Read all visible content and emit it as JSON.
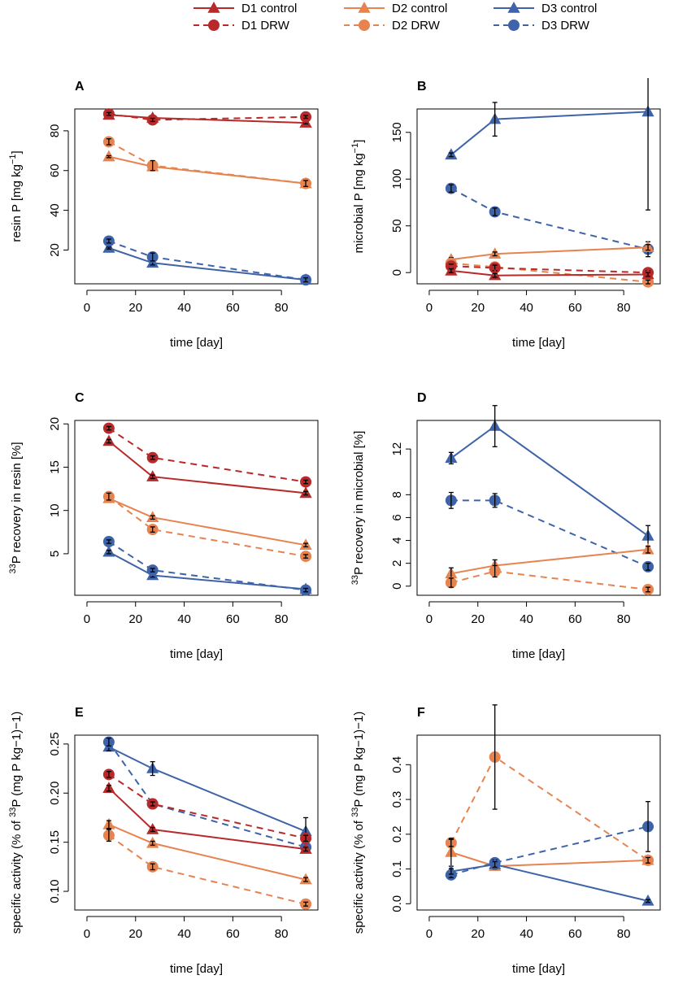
{
  "colors": {
    "D1": "#b82a2a",
    "D2": "#e6834f",
    "D3": "#3e63a8",
    "axis": "#000000"
  },
  "legend": {
    "items": [
      {
        "label": "D1 control",
        "site": "D1",
        "dashed": false,
        "marker": "triangle"
      },
      {
        "label": "D2 control",
        "site": "D2",
        "dashed": false,
        "marker": "triangle"
      },
      {
        "label": "D3 control",
        "site": "D3",
        "dashed": false,
        "marker": "triangle"
      },
      {
        "label": "D1 DRW",
        "site": "D1",
        "dashed": true,
        "marker": "circle"
      },
      {
        "label": "D2 DRW",
        "site": "D2",
        "dashed": true,
        "marker": "circle"
      },
      {
        "label": "D3 DRW",
        "site": "D3",
        "dashed": true,
        "marker": "circle"
      }
    ]
  },
  "chart_data": [
    {
      "type": "line",
      "panel": "A",
      "xlabel": "time [day]",
      "ylabel_pre": "resin P [mg kg",
      "ylabel_sup": "−1",
      "ylabel_post": "]",
      "xlim": [
        -5,
        95
      ],
      "ylim": [
        3,
        91
      ],
      "xticks": [
        "0",
        "20",
        "40",
        "60",
        "80"
      ],
      "xtick_values": [
        0,
        20,
        40,
        60,
        80
      ],
      "yticks": [
        "20",
        "40",
        "60",
        "80"
      ],
      "ytick_values": [
        20,
        40,
        60,
        80
      ],
      "x": [
        9,
        27,
        90
      ],
      "series": [
        {
          "name": "D1 control",
          "site": "D1",
          "dashed": false,
          "marker": "triangle",
          "values": [
            88,
            86.5,
            84
          ],
          "err": [
            0.5,
            0.5,
            0.5
          ]
        },
        {
          "name": "D1 DRW",
          "site": "D1",
          "dashed": true,
          "marker": "circle",
          "values": [
            88.5,
            85.5,
            87
          ],
          "err": [
            0.7,
            0.8,
            0.7
          ]
        },
        {
          "name": "D2 control",
          "site": "D2",
          "dashed": false,
          "marker": "triangle",
          "values": [
            67,
            62,
            53.5
          ],
          "err": [
            0.5,
            1.5,
            1
          ]
        },
        {
          "name": "D2 DRW",
          "site": "D2",
          "dashed": true,
          "marker": "circle",
          "values": [
            74.5,
            62.5,
            53.5
          ],
          "err": [
            1.5,
            2.5,
            1.5
          ]
        },
        {
          "name": "D3 control",
          "site": "D3",
          "dashed": false,
          "marker": "triangle",
          "values": [
            21,
            13.5,
            5
          ],
          "err": [
            0.5,
            1,
            0.5
          ]
        },
        {
          "name": "D3 DRW",
          "site": "D3",
          "dashed": true,
          "marker": "circle",
          "values": [
            24.5,
            16.5,
            5
          ],
          "err": [
            1,
            2,
            1
          ]
        }
      ]
    },
    {
      "type": "line",
      "panel": "B",
      "xlabel": "time [day]",
      "ylabel_pre": "microbial P [mg kg",
      "ylabel_sup": "−1",
      "ylabel_post": "]",
      "xlim": [
        -5,
        95
      ],
      "ylim": [
        -12,
        175
      ],
      "xticks": [
        "0",
        "20",
        "40",
        "60",
        "80"
      ],
      "xtick_values": [
        0,
        20,
        40,
        60,
        80
      ],
      "yticks": [
        "0",
        "50",
        "100",
        "150"
      ],
      "ytick_values": [
        0,
        50,
        100,
        150
      ],
      "x": [
        9,
        27,
        90
      ],
      "series": [
        {
          "name": "D3 control",
          "site": "D3",
          "dashed": false,
          "marker": "triangle",
          "values": [
            126,
            164,
            172
          ],
          "err": [
            2,
            18,
            105
          ]
        },
        {
          "name": "D3 DRW",
          "site": "D3",
          "dashed": true,
          "marker": "circle",
          "values": [
            90,
            65,
            25
          ],
          "err": [
            4,
            4,
            8
          ]
        },
        {
          "name": "D2 control",
          "site": "D2",
          "dashed": false,
          "marker": "triangle",
          "values": [
            14,
            20,
            27
          ],
          "err": [
            2,
            2,
            3
          ]
        },
        {
          "name": "D2 DRW",
          "site": "D2",
          "dashed": true,
          "marker": "circle",
          "values": [
            10,
            6,
            -10
          ],
          "err": [
            2,
            2,
            2
          ]
        },
        {
          "name": "D1 DRW",
          "site": "D1",
          "dashed": true,
          "marker": "circle",
          "values": [
            7,
            5,
            0
          ],
          "err": [
            2,
            3,
            2
          ]
        },
        {
          "name": "D1 control",
          "site": "D1",
          "dashed": false,
          "marker": "triangle",
          "values": [
            2,
            -3,
            -2
          ],
          "err": [
            2,
            2,
            2
          ]
        }
      ]
    },
    {
      "type": "line",
      "panel": "C",
      "xlabel": "time [day]",
      "ylabel_pre": "",
      "ylabel_sup_pre": "33",
      "ylabel_post": "P recovery in resin [%]",
      "xlim": [
        -5,
        95
      ],
      "ylim": [
        0.2,
        20.4
      ],
      "xticks": [
        "0",
        "20",
        "40",
        "60",
        "80"
      ],
      "xtick_values": [
        0,
        20,
        40,
        60,
        80
      ],
      "yticks": [
        "5",
        "10",
        "15",
        "20"
      ],
      "ytick_values": [
        5,
        10,
        15,
        20
      ],
      "x": [
        9,
        27,
        90
      ],
      "series": [
        {
          "name": "D1 control",
          "site": "D1",
          "dashed": false,
          "marker": "triangle",
          "values": [
            18,
            13.9,
            12
          ],
          "err": [
            0.2,
            0.2,
            0.2
          ]
        },
        {
          "name": "D1 DRW",
          "site": "D1",
          "dashed": true,
          "marker": "circle",
          "values": [
            19.5,
            16.1,
            13.3
          ],
          "err": [
            0.2,
            0.2,
            0.2
          ]
        },
        {
          "name": "D2 control",
          "site": "D2",
          "dashed": false,
          "marker": "triangle",
          "values": [
            11.4,
            9.2,
            6
          ],
          "err": [
            0.3,
            0.2,
            0.2
          ]
        },
        {
          "name": "D2 DRW",
          "site": "D2",
          "dashed": true,
          "marker": "circle",
          "values": [
            11.6,
            7.8,
            4.7
          ],
          "err": [
            0.4,
            0.3,
            0.2
          ]
        },
        {
          "name": "D3 control",
          "site": "D3",
          "dashed": false,
          "marker": "triangle",
          "values": [
            5.2,
            2.5,
            0.9
          ],
          "err": [
            0.2,
            0.2,
            0.2
          ]
        },
        {
          "name": "D3 DRW",
          "site": "D3",
          "dashed": true,
          "marker": "circle",
          "values": [
            6.4,
            3.1,
            0.8
          ],
          "err": [
            0.2,
            0.2,
            0.2
          ]
        }
      ]
    },
    {
      "type": "line",
      "panel": "D",
      "xlabel": "time [day]",
      "ylabel_pre": "",
      "ylabel_sup_pre": "33",
      "ylabel_post": "P recovery in microbial [%]",
      "xlim": [
        -5,
        95
      ],
      "ylim": [
        -0.8,
        14.5
      ],
      "xticks": [
        "0",
        "20",
        "40",
        "60",
        "80"
      ],
      "xtick_values": [
        0,
        20,
        40,
        60,
        80
      ],
      "yticks": [
        "0",
        "2",
        "4",
        "6",
        "8",
        "12"
      ],
      "ytick_values": [
        0,
        2,
        4,
        6,
        8,
        12
      ],
      "x": [
        9,
        27,
        90
      ],
      "series": [
        {
          "name": "D3 control",
          "site": "D3",
          "dashed": false,
          "marker": "triangle",
          "values": [
            11.2,
            14,
            4.4
          ],
          "err": [
            0.5,
            1.8,
            0.9
          ]
        },
        {
          "name": "D3 DRW",
          "site": "D3",
          "dashed": true,
          "marker": "circle",
          "values": [
            7.5,
            7.5,
            1.7
          ],
          "err": [
            0.7,
            0.6,
            0.3
          ]
        },
        {
          "name": "D2 control",
          "site": "D2",
          "dashed": false,
          "marker": "triangle",
          "values": [
            1.1,
            1.8,
            3.2
          ],
          "err": [
            0.5,
            0.5,
            0.3
          ]
        },
        {
          "name": "D2 DRW",
          "site": "D2",
          "dashed": true,
          "marker": "circle",
          "values": [
            0.3,
            1.3,
            -0.3
          ],
          "err": [
            0.4,
            0.5,
            0.2
          ]
        }
      ]
    },
    {
      "type": "line",
      "panel": "E",
      "xlabel": "time [day]",
      "ylabel_pre": "specific activity (% of ",
      "ylabel_sup": "33",
      "ylabel_post": "P (mg P kg−1)−1)",
      "xlim": [
        -5,
        95
      ],
      "ylim": [
        0.081,
        0.259
      ],
      "xticks": [
        "0",
        "20",
        "40",
        "60",
        "80"
      ],
      "xtick_values": [
        0,
        20,
        40,
        60,
        80
      ],
      "yticks": [
        "0.10",
        "0.15",
        "0.20",
        "0.25"
      ],
      "ytick_values": [
        0.1,
        0.15,
        0.2,
        0.25
      ],
      "x": [
        9,
        27,
        90
      ],
      "series": [
        {
          "name": "D3 control",
          "site": "D3",
          "dashed": false,
          "marker": "triangle",
          "values": [
            0.247,
            0.225,
            0.161
          ],
          "err": [
            0.004,
            0.007,
            0.014
          ]
        },
        {
          "name": "D3 DRW",
          "site": "D3",
          "dashed": true,
          "marker": "circle",
          "values": [
            0.252,
            0.189,
            0.145
          ],
          "err": [
            0.004,
            0.003,
            0.005
          ]
        },
        {
          "name": "D1 DRW",
          "site": "D1",
          "dashed": true,
          "marker": "circle",
          "values": [
            0.219,
            0.189,
            0.154
          ],
          "err": [
            0.003,
            0.002,
            0.003
          ]
        },
        {
          "name": "D1 control",
          "site": "D1",
          "dashed": false,
          "marker": "triangle",
          "values": [
            0.205,
            0.163,
            0.143
          ],
          "err": [
            0.003,
            0.002,
            0.002
          ]
        },
        {
          "name": "D2 control",
          "site": "D2",
          "dashed": false,
          "marker": "triangle",
          "values": [
            0.168,
            0.149,
            0.112
          ],
          "err": [
            0.004,
            0.002,
            0.002
          ]
        },
        {
          "name": "D2 DRW",
          "site": "D2",
          "dashed": true,
          "marker": "circle",
          "values": [
            0.157,
            0.125,
            0.087
          ],
          "err": [
            0.006,
            0.003,
            0.002
          ]
        }
      ]
    },
    {
      "type": "line",
      "panel": "F",
      "xlabel": "time [day]",
      "ylabel_pre": "specific activity (% of ",
      "ylabel_sup": "33",
      "ylabel_post": "P (mg P kg−1)−1)",
      "xlim": [
        -5,
        95
      ],
      "ylim": [
        -0.018,
        0.485
      ],
      "xticks": [
        "0",
        "20",
        "40",
        "60",
        "80"
      ],
      "xtick_values": [
        0,
        20,
        40,
        60,
        80
      ],
      "yticks": [
        "0.0",
        "0.1",
        "0.2",
        "0.3",
        "0.4"
      ],
      "ytick_values": [
        0,
        0.1,
        0.2,
        0.3,
        0.4
      ],
      "x": [
        9,
        27,
        90
      ],
      "series": [
        {
          "name": "D2 DRW",
          "site": "D2",
          "dashed": true,
          "marker": "circle",
          "values": [
            0.175,
            0.422,
            0.125
          ],
          "err": [
            0.01,
            0.15,
            0.008
          ]
        },
        {
          "name": "D2 control",
          "site": "D2",
          "dashed": false,
          "marker": "triangle",
          "values": [
            0.148,
            0.108,
            0.125
          ],
          "err": [
            0.04,
            0.008,
            0.008
          ]
        },
        {
          "name": "D3 DRW",
          "site": "D3",
          "dashed": true,
          "marker": "circle",
          "values": [
            0.083,
            0.118,
            0.222
          ],
          "err": [
            0.008,
            0.008,
            0.072
          ]
        },
        {
          "name": "D3 control",
          "site": "D3",
          "dashed": false,
          "marker": "triangle",
          "values": [
            0.093,
            0.113,
            0.008
          ],
          "err": [
            0.008,
            0.008,
            0.004
          ]
        }
      ]
    }
  ]
}
